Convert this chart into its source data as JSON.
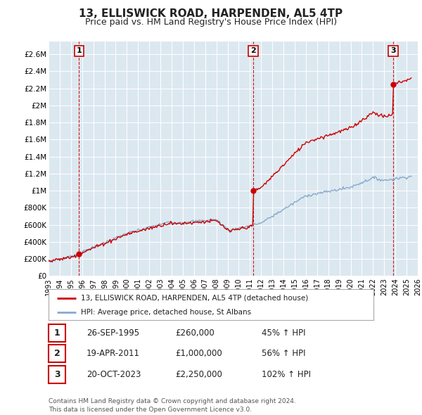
{
  "title": "13, ELLISWICK ROAD, HARPENDEN, AL5 4TP",
  "subtitle": "Price paid vs. HM Land Registry's House Price Index (HPI)",
  "title_fontsize": 11,
  "subtitle_fontsize": 9,
  "ylabel_ticks": [
    "£0",
    "£200K",
    "£400K",
    "£600K",
    "£800K",
    "£1M",
    "£1.2M",
    "£1.4M",
    "£1.6M",
    "£1.8M",
    "£2M",
    "£2.2M",
    "£2.4M",
    "£2.6M"
  ],
  "ytick_values": [
    0,
    200000,
    400000,
    600000,
    800000,
    1000000,
    1200000,
    1400000,
    1600000,
    1800000,
    2000000,
    2200000,
    2400000,
    2600000
  ],
  "ylim": [
    0,
    2750000
  ],
  "xlim_start": 1993.0,
  "xlim_end": 2026.0,
  "sales": [
    {
      "year": 1995.73,
      "price": 260000,
      "label": "1"
    },
    {
      "year": 2011.3,
      "price": 1000000,
      "label": "2"
    },
    {
      "year": 2023.8,
      "price": 2250000,
      "label": "3"
    }
  ],
  "sale_color": "#cc0000",
  "hpi_color": "#88aacc",
  "legend_label_red": "13, ELLISWICK ROAD, HARPENDEN, AL5 4TP (detached house)",
  "legend_label_blue": "HPI: Average price, detached house, St Albans",
  "table_rows": [
    {
      "num": "1",
      "date": "26-SEP-1995",
      "price": "£260,000",
      "change": "45% ↑ HPI"
    },
    {
      "num": "2",
      "date": "19-APR-2011",
      "price": "£1,000,000",
      "change": "56% ↑ HPI"
    },
    {
      "num": "3",
      "date": "20-OCT-2023",
      "price": "£2,250,000",
      "change": "102% ↑ HPI"
    }
  ],
  "footnote": "Contains HM Land Registry data © Crown copyright and database right 2024.\nThis data is licensed under the Open Government Licence v3.0.",
  "bg_color": "#ffffff",
  "plot_bg_color": "#dce8f0",
  "grid_color": "#ffffff",
  "xticks": [
    1993,
    1994,
    1995,
    1996,
    1997,
    1998,
    1999,
    2000,
    2001,
    2002,
    2003,
    2004,
    2005,
    2006,
    2007,
    2008,
    2009,
    2010,
    2011,
    2012,
    2013,
    2014,
    2015,
    2016,
    2017,
    2018,
    2019,
    2020,
    2021,
    2022,
    2023,
    2024,
    2025,
    2026
  ]
}
